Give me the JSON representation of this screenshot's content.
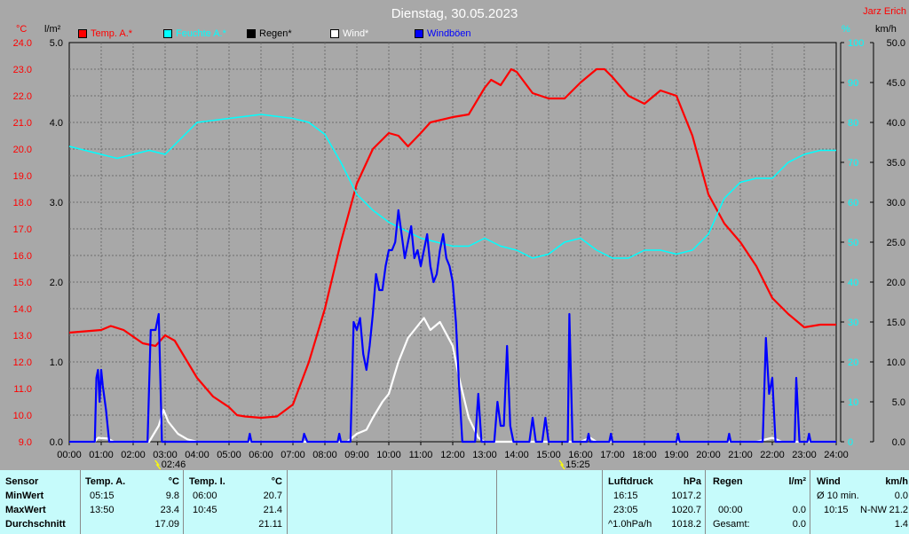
{
  "title": "Dienstag, 30.05.2023",
  "corner_label": "Jarz Erich",
  "axis_units": {
    "temp": "°C",
    "rain": "l/m²",
    "humidity": "%",
    "wind": "km/h"
  },
  "legend": [
    {
      "label": "Temp. A.*",
      "color": "#ff0000"
    },
    {
      "label": "Feuchte A.*",
      "color": "#00ffff"
    },
    {
      "label": "Regen*",
      "color": "#000000"
    },
    {
      "label": "Wind*",
      "color": "#ffffff"
    },
    {
      "label": "Windböen",
      "color": "#0000ff"
    }
  ],
  "markers": [
    {
      "label": "02:46",
      "hour": 2.77
    },
    {
      "label": "15:25",
      "hour": 15.42
    }
  ],
  "chart_data": {
    "type": "line",
    "x_ticks": [
      "00:00",
      "01:00",
      "02:00",
      "03:00",
      "04:00",
      "05:00",
      "06:00",
      "07:00",
      "08:00",
      "09:00",
      "10:00",
      "11:00",
      "12:00",
      "13:00",
      "14:00",
      "15:00",
      "16:00",
      "17:00",
      "18:00",
      "19:00",
      "20:00",
      "21:00",
      "22:00",
      "23:00",
      "24:00"
    ],
    "temp_ticks": [
      "24.0",
      "23.0",
      "22.0",
      "21.0",
      "20.0",
      "19.0",
      "18.0",
      "17.0",
      "16.0",
      "15.0",
      "14.0",
      "13.0",
      "12.0",
      "11.0",
      "10.0",
      "9.0"
    ],
    "rain_ticks": [
      "5.0",
      "4.0",
      "3.0",
      "2.0",
      "1.0",
      "0.0"
    ],
    "humidity_ticks": [
      "100",
      "90",
      "80",
      "70",
      "60",
      "50",
      "40",
      "30",
      "20",
      "10",
      "0"
    ],
    "wind_ticks": [
      "50.0",
      "45.0",
      "40.0",
      "35.0",
      "30.0",
      "25.0",
      "20.0",
      "15.0",
      "10.0",
      "5.0",
      "0.0"
    ],
    "ylim_temp": [
      9,
      24
    ],
    "ylim_rain": [
      0,
      5
    ],
    "ylim_humidity": [
      0,
      100
    ],
    "ylim_wind": [
      0,
      50
    ],
    "series": [
      {
        "name": "Temp. A.*",
        "axis": "temp",
        "color": "#ff0000",
        "points": [
          [
            0,
            13.1
          ],
          [
            0.5,
            13.15
          ],
          [
            1,
            13.2
          ],
          [
            1.3,
            13.35
          ],
          [
            1.7,
            13.2
          ],
          [
            2.3,
            12.7
          ],
          [
            2.7,
            12.6
          ],
          [
            3.0,
            13.0
          ],
          [
            3.3,
            12.8
          ],
          [
            3.7,
            12.0
          ],
          [
            4.0,
            11.4
          ],
          [
            4.5,
            10.7
          ],
          [
            5.0,
            10.3
          ],
          [
            5.25,
            10.0
          ],
          [
            5.5,
            9.95
          ],
          [
            6.0,
            9.9
          ],
          [
            6.5,
            9.95
          ],
          [
            7.0,
            10.4
          ],
          [
            7.5,
            12.0
          ],
          [
            8.0,
            14.0
          ],
          [
            8.5,
            16.5
          ],
          [
            9.0,
            18.7
          ],
          [
            9.5,
            20.0
          ],
          [
            10.0,
            20.6
          ],
          [
            10.3,
            20.5
          ],
          [
            10.6,
            20.1
          ],
          [
            11.0,
            20.6
          ],
          [
            11.3,
            21.0
          ],
          [
            12.0,
            21.2
          ],
          [
            12.5,
            21.3
          ],
          [
            13.0,
            22.3
          ],
          [
            13.2,
            22.6
          ],
          [
            13.5,
            22.4
          ],
          [
            13.83,
            23.0
          ],
          [
            14.0,
            22.9
          ],
          [
            14.5,
            22.1
          ],
          [
            15.0,
            21.9
          ],
          [
            15.5,
            21.9
          ],
          [
            16.0,
            22.5
          ],
          [
            16.5,
            23.0
          ],
          [
            16.75,
            23.0
          ],
          [
            17.0,
            22.7
          ],
          [
            17.5,
            22.0
          ],
          [
            18.0,
            21.7
          ],
          [
            18.5,
            22.2
          ],
          [
            19.0,
            22.0
          ],
          [
            19.5,
            20.5
          ],
          [
            20.0,
            18.3
          ],
          [
            20.5,
            17.2
          ],
          [
            21.0,
            16.5
          ],
          [
            21.5,
            15.6
          ],
          [
            22.0,
            14.4
          ],
          [
            22.5,
            13.8
          ],
          [
            23.0,
            13.3
          ],
          [
            23.5,
            13.4
          ],
          [
            24.0,
            13.4
          ]
        ]
      },
      {
        "name": "Feuchte A.*",
        "axis": "humidity",
        "color": "#00ffff",
        "points": [
          [
            0,
            74
          ],
          [
            0.5,
            73
          ],
          [
            1,
            72
          ],
          [
            1.5,
            71
          ],
          [
            2,
            72
          ],
          [
            2.5,
            73
          ],
          [
            3,
            72
          ],
          [
            3.5,
            76
          ],
          [
            4,
            80
          ],
          [
            5,
            81
          ],
          [
            6,
            82
          ],
          [
            7,
            81
          ],
          [
            7.5,
            80
          ],
          [
            8,
            77
          ],
          [
            8.5,
            70
          ],
          [
            9,
            62
          ],
          [
            9.5,
            58
          ],
          [
            10,
            55
          ],
          [
            10.5,
            53
          ],
          [
            11,
            51
          ],
          [
            11.5,
            50
          ],
          [
            12,
            49
          ],
          [
            12.5,
            49
          ],
          [
            13,
            51
          ],
          [
            13.5,
            49
          ],
          [
            14,
            48
          ],
          [
            14.5,
            46
          ],
          [
            15,
            47
          ],
          [
            15.5,
            50
          ],
          [
            16,
            51
          ],
          [
            16.5,
            48
          ],
          [
            17,
            46
          ],
          [
            17.5,
            46
          ],
          [
            18,
            48
          ],
          [
            18.5,
            48
          ],
          [
            19,
            47
          ],
          [
            19.5,
            48
          ],
          [
            20,
            52
          ],
          [
            20.5,
            61
          ],
          [
            21,
            65
          ],
          [
            21.5,
            66
          ],
          [
            22,
            66
          ],
          [
            22.5,
            70
          ],
          [
            23,
            72
          ],
          [
            23.5,
            73
          ],
          [
            24,
            73
          ]
        ]
      },
      {
        "name": "Wind*",
        "axis": "wind",
        "color": "#ffffff",
        "points": [
          [
            0,
            0
          ],
          [
            0.8,
            0
          ],
          [
            0.9,
            0.5
          ],
          [
            1.2,
            0.4
          ],
          [
            1.4,
            0
          ],
          [
            2.5,
            0
          ],
          [
            2.8,
            2.0
          ],
          [
            2.95,
            4.0
          ],
          [
            3.1,
            2.5
          ],
          [
            3.4,
            1.0
          ],
          [
            3.7,
            0.3
          ],
          [
            4,
            0
          ],
          [
            8.7,
            0
          ],
          [
            9.0,
            1.0
          ],
          [
            9.3,
            1.5
          ],
          [
            9.5,
            3.0
          ],
          [
            9.8,
            5.0
          ],
          [
            10.0,
            6.0
          ],
          [
            10.3,
            10.0
          ],
          [
            10.6,
            13.0
          ],
          [
            10.9,
            14.5
          ],
          [
            11.1,
            15.5
          ],
          [
            11.3,
            14.0
          ],
          [
            11.6,
            15.0
          ],
          [
            12.0,
            12.0
          ],
          [
            12.2,
            8.0
          ],
          [
            12.5,
            3.0
          ],
          [
            12.8,
            0.5
          ],
          [
            13,
            0
          ],
          [
            16,
            0
          ],
          [
            16.3,
            0.5
          ],
          [
            16.5,
            0
          ],
          [
            21.5,
            0
          ],
          [
            22,
            0.5
          ],
          [
            22.3,
            0
          ],
          [
            24,
            0
          ]
        ]
      },
      {
        "name": "Windböen",
        "axis": "wind",
        "color": "#0000ff",
        "points": [
          [
            0,
            0
          ],
          [
            0.8,
            0
          ],
          [
            0.85,
            8
          ],
          [
            0.9,
            9
          ],
          [
            0.95,
            5
          ],
          [
            1.0,
            9
          ],
          [
            1.05,
            7
          ],
          [
            1.15,
            4
          ],
          [
            1.25,
            0
          ],
          [
            2.45,
            0
          ],
          [
            2.55,
            14
          ],
          [
            2.7,
            14
          ],
          [
            2.8,
            16
          ],
          [
            2.9,
            0
          ],
          [
            5.6,
            0
          ],
          [
            5.65,
            1
          ],
          [
            5.7,
            0
          ],
          [
            7.3,
            0
          ],
          [
            7.35,
            1
          ],
          [
            7.45,
            0
          ],
          [
            8.4,
            0
          ],
          [
            8.45,
            1
          ],
          [
            8.5,
            0
          ],
          [
            8.8,
            0
          ],
          [
            8.9,
            15
          ],
          [
            9.0,
            14
          ],
          [
            9.1,
            15.5
          ],
          [
            9.2,
            11
          ],
          [
            9.3,
            9
          ],
          [
            9.4,
            12
          ],
          [
            9.5,
            16
          ],
          [
            9.6,
            21
          ],
          [
            9.7,
            19
          ],
          [
            9.8,
            19
          ],
          [
            9.9,
            22
          ],
          [
            10.0,
            24
          ],
          [
            10.1,
            24
          ],
          [
            10.2,
            25
          ],
          [
            10.3,
            29
          ],
          [
            10.4,
            26
          ],
          [
            10.5,
            23
          ],
          [
            10.6,
            25
          ],
          [
            10.7,
            27
          ],
          [
            10.8,
            23
          ],
          [
            10.9,
            24
          ],
          [
            11.0,
            22
          ],
          [
            11.1,
            24
          ],
          [
            11.2,
            26
          ],
          [
            11.3,
            22
          ],
          [
            11.4,
            20
          ],
          [
            11.5,
            21
          ],
          [
            11.6,
            24
          ],
          [
            11.7,
            26
          ],
          [
            11.8,
            23
          ],
          [
            11.9,
            22
          ],
          [
            12.0,
            20
          ],
          [
            12.1,
            15
          ],
          [
            12.2,
            7
          ],
          [
            12.3,
            0
          ],
          [
            12.7,
            0
          ],
          [
            12.8,
            6
          ],
          [
            12.9,
            0
          ],
          [
            13.3,
            0
          ],
          [
            13.4,
            5
          ],
          [
            13.5,
            2
          ],
          [
            13.6,
            2
          ],
          [
            13.7,
            12
          ],
          [
            13.8,
            2
          ],
          [
            13.9,
            0
          ],
          [
            14.4,
            0
          ],
          [
            14.5,
            3
          ],
          [
            14.6,
            0
          ],
          [
            14.8,
            0
          ],
          [
            14.9,
            3
          ],
          [
            15.0,
            0
          ],
          [
            15.6,
            0
          ],
          [
            15.65,
            16
          ],
          [
            15.75,
            0
          ],
          [
            16.2,
            0
          ],
          [
            16.25,
            1
          ],
          [
            16.3,
            0
          ],
          [
            16.9,
            0
          ],
          [
            16.95,
            1
          ],
          [
            17.0,
            0
          ],
          [
            19.0,
            0
          ],
          [
            19.05,
            1
          ],
          [
            19.1,
            0
          ],
          [
            20.6,
            0
          ],
          [
            20.65,
            1
          ],
          [
            20.7,
            0
          ],
          [
            21.7,
            0
          ],
          [
            21.8,
            13
          ],
          [
            21.9,
            6
          ],
          [
            22.0,
            8
          ],
          [
            22.1,
            0
          ],
          [
            22.7,
            0
          ],
          [
            22.75,
            8
          ],
          [
            22.85,
            0
          ],
          [
            23.1,
            0
          ],
          [
            23.15,
            1
          ],
          [
            23.2,
            0
          ],
          [
            24,
            0
          ]
        ]
      }
    ]
  },
  "footer": {
    "sensor": {
      "header": "Sensor",
      "rows": [
        "MinWert",
        "MaxWert",
        "Durchschnitt"
      ]
    },
    "temp_a": {
      "header": "Temp. A.",
      "unit": "°C",
      "rows": [
        [
          "05:15",
          "9.8"
        ],
        [
          "13:50",
          "23.4"
        ],
        [
          "",
          "17.09"
        ]
      ]
    },
    "temp_i": {
      "header": "Temp. I.",
      "unit": "°C",
      "rows": [
        [
          "06:00",
          "20.7"
        ],
        [
          "10:45",
          "21.4"
        ],
        [
          "",
          "21.11"
        ]
      ]
    },
    "luftdruck": {
      "header": "Luftdruck",
      "unit": "hPa",
      "rows": [
        [
          "16:15",
          "1017.2"
        ],
        [
          "23:05",
          "1020.7"
        ],
        [
          "^1.0hPa/h",
          "1018.2"
        ]
      ]
    },
    "regen": {
      "header": "Regen",
      "unit": "l/m²",
      "rows": [
        [
          "",
          ""
        ],
        [
          "00:00",
          "0.0"
        ],
        [
          "Gesamt:",
          "0.0"
        ]
      ]
    },
    "wind": {
      "header": "Wind",
      "unit": "km/h",
      "rows": [
        [
          "Ø 10 min.",
          "",
          "0.0"
        ],
        [
          "10:15",
          "N-NW",
          "21.2"
        ],
        [
          "",
          "",
          "1.4"
        ]
      ]
    }
  }
}
